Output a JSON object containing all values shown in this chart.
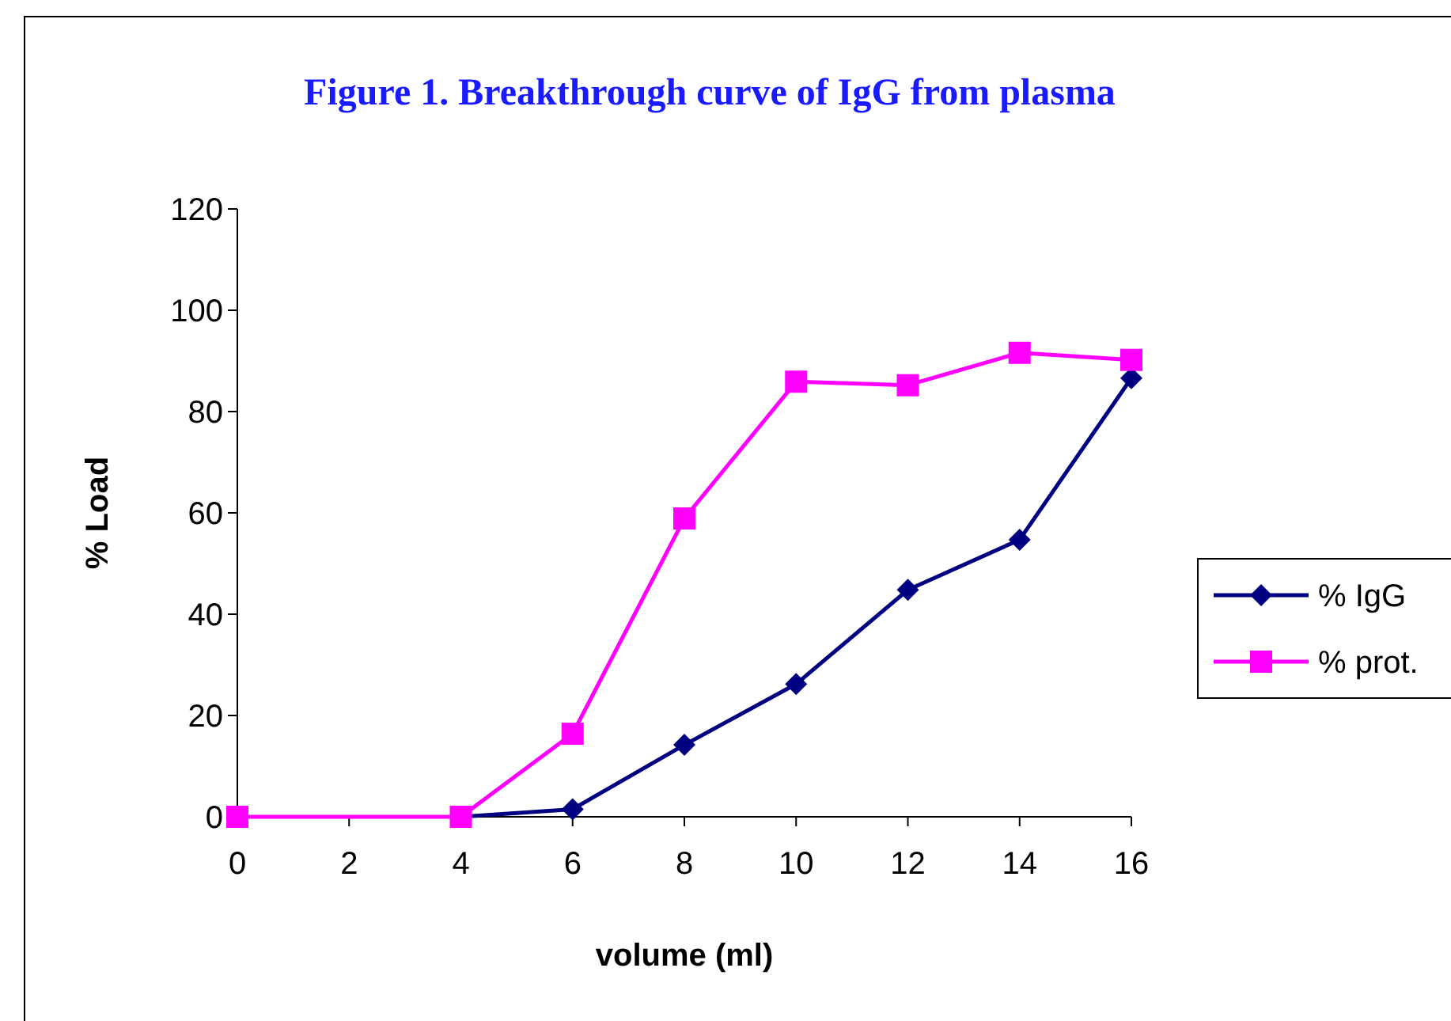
{
  "chart_data": {
    "type": "line",
    "title": "Figure 1. Breakthrough curve of IgG from plasma",
    "xlabel": "volume (ml)",
    "ylabel": "% Load",
    "series": [
      {
        "name": "% IgG",
        "color": "#000080",
        "marker": "diamond",
        "x": [
          4,
          6,
          8,
          10,
          12,
          14,
          16
        ],
        "values": [
          0,
          1.5,
          14.2,
          26.2,
          44.8,
          54.7,
          86.6
        ]
      },
      {
        "name": "% prot.",
        "color": "#ff00ff",
        "marker": "square",
        "x": [
          0,
          4,
          6,
          8,
          10,
          12,
          14,
          16
        ],
        "values": [
          0,
          0,
          16.4,
          58.9,
          85.9,
          85.2,
          91.6,
          90.2
        ]
      }
    ],
    "xlim": [
      0,
      16
    ],
    "xticks": [
      0,
      2,
      4,
      6,
      8,
      10,
      12,
      14,
      16
    ],
    "ylim": [
      0,
      120
    ],
    "yticks": [
      0,
      20,
      40,
      60,
      80,
      100,
      120
    ],
    "grid": false,
    "legend": "right"
  }
}
